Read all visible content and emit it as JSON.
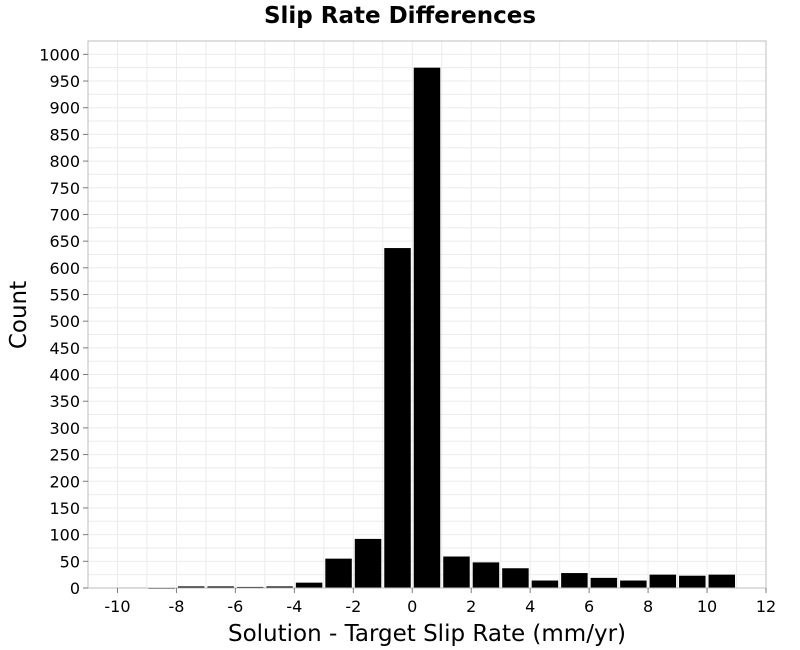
{
  "chart_data": {
    "type": "bar",
    "title": "Slip Rate Differences",
    "xlabel": "Solution - Target Slip Rate (mm/yr)",
    "ylabel": "Count",
    "xlim": [
      -11,
      12
    ],
    "ylim": [
      0,
      1025
    ],
    "x_ticks": [
      -10,
      -8,
      -6,
      -4,
      -2,
      0,
      2,
      4,
      6,
      8,
      10,
      12
    ],
    "y_ticks": [
      0,
      50,
      100,
      150,
      200,
      250,
      300,
      350,
      400,
      450,
      500,
      550,
      600,
      650,
      700,
      750,
      800,
      850,
      900,
      950,
      1000
    ],
    "bin_width": 1,
    "bar_color": "#000000",
    "grid": true,
    "bins": [
      {
        "x": -9.5,
        "value": 1
      },
      {
        "x": -8.5,
        "value": 0
      },
      {
        "x": -7.5,
        "value": 3
      },
      {
        "x": -6.5,
        "value": 3
      },
      {
        "x": -5.5,
        "value": 2
      },
      {
        "x": -4.5,
        "value": 3
      },
      {
        "x": -3.5,
        "value": 10
      },
      {
        "x": -2.5,
        "value": 55
      },
      {
        "x": -1.5,
        "value": 92
      },
      {
        "x": -0.5,
        "value": 637
      },
      {
        "x": 0.5,
        "value": 975
      },
      {
        "x": 1.5,
        "value": 59
      },
      {
        "x": 2.5,
        "value": 48
      },
      {
        "x": 3.5,
        "value": 37
      },
      {
        "x": 4.5,
        "value": 14
      },
      {
        "x": 5.5,
        "value": 28
      },
      {
        "x": 6.5,
        "value": 19
      },
      {
        "x": 7.5,
        "value": 14
      },
      {
        "x": 8.5,
        "value": 25
      },
      {
        "x": 9.5,
        "value": 23
      },
      {
        "x": 10.5,
        "value": 25
      }
    ]
  }
}
